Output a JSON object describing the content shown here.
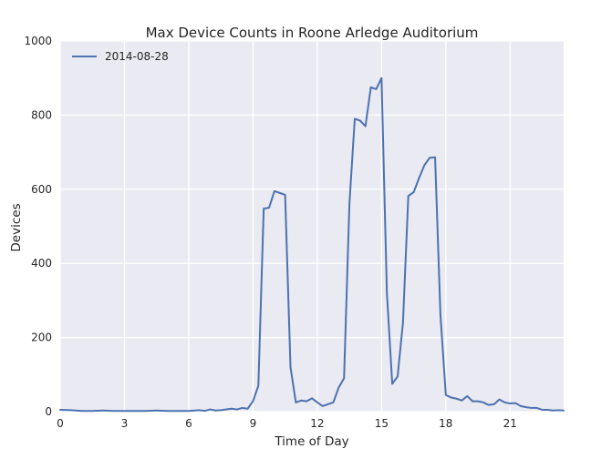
{
  "chart_data": {
    "type": "line",
    "title": "Max Device Counts in Roone Arledge Auditorium",
    "xlabel": "Time of Day",
    "ylabel": "Devices",
    "xlim": [
      0,
      23.5
    ],
    "ylim": [
      0,
      1000
    ],
    "xticks": [
      0,
      3,
      6,
      9,
      12,
      15,
      18,
      21
    ],
    "yticks": [
      0,
      200,
      400,
      600,
      800,
      1000
    ],
    "grid": true,
    "legend_position": "top-left",
    "colors": {
      "background": "#EAEAF2",
      "grid": "#FFFFFF",
      "line": "#4C72B0"
    },
    "series": [
      {
        "name": "2014-08-28",
        "x": [
          0,
          0.5,
          1,
          1.5,
          2,
          2.5,
          3,
          3.5,
          4,
          4.5,
          5,
          5.5,
          6,
          6.5,
          6.75,
          7,
          7.25,
          7.5,
          8,
          8.25,
          8.5,
          8.75,
          9,
          9.25,
          9.5,
          9.75,
          10,
          10.25,
          10.5,
          10.75,
          11,
          11.25,
          11.5,
          11.75,
          12,
          12.25,
          12.5,
          12.75,
          13,
          13.25,
          13.5,
          13.75,
          14,
          14.25,
          14.5,
          14.75,
          15,
          15.25,
          15.5,
          15.75,
          16,
          16.25,
          16.5,
          16.75,
          17,
          17.25,
          17.5,
          17.75,
          18,
          18.25,
          18.5,
          18.75,
          19,
          19.25,
          19.5,
          19.75,
          20,
          20.25,
          20.5,
          20.75,
          21,
          21.25,
          21.5,
          21.75,
          22,
          22.25,
          22.5,
          22.75,
          23,
          23.25,
          23.5
        ],
        "y": [
          5,
          4,
          2,
          2,
          3,
          2,
          2,
          2,
          2,
          3,
          2,
          2,
          2,
          4,
          2,
          6,
          3,
          4,
          8,
          6,
          10,
          8,
          28,
          70,
          548,
          550,
          595,
          590,
          585,
          120,
          25,
          30,
          28,
          36,
          25,
          15,
          20,
          25,
          65,
          90,
          560,
          790,
          785,
          770,
          875,
          870,
          900,
          320,
          75,
          95,
          240,
          582,
          592,
          630,
          665,
          685,
          686,
          260,
          45,
          38,
          35,
          30,
          42,
          28,
          28,
          25,
          18,
          20,
          33,
          25,
          22,
          23,
          15,
          12,
          10,
          10,
          5,
          5,
          3,
          4,
          3
        ]
      }
    ]
  }
}
